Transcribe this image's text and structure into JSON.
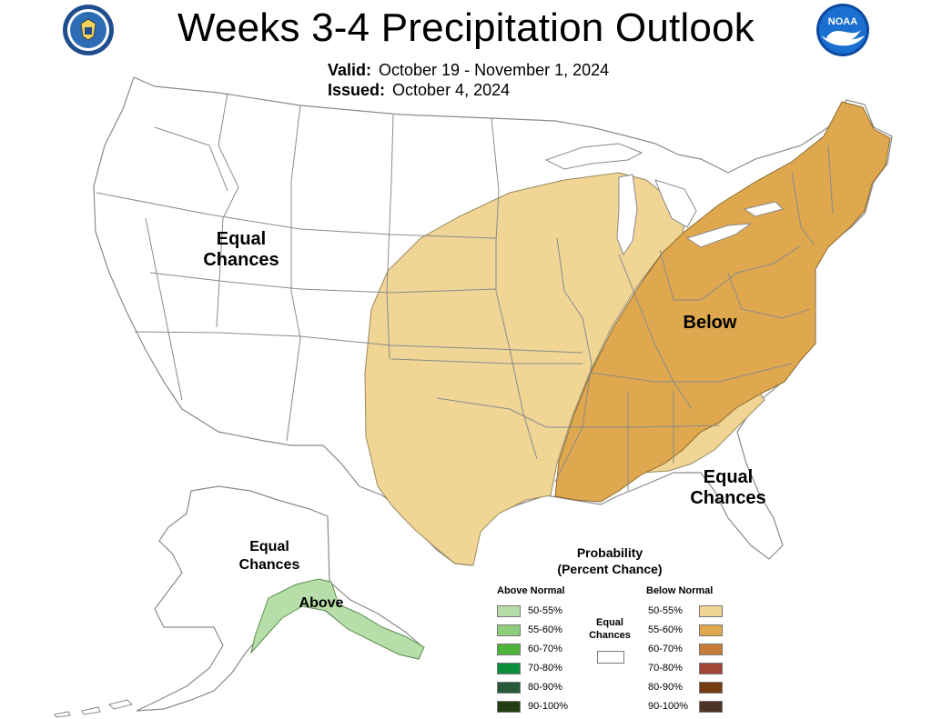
{
  "title": "Weeks 3-4 Precipitation Outlook",
  "valid_label": "Valid:",
  "valid_value": "October 19 - November 1, 2024",
  "issued_label": "Issued:",
  "issued_value": "October 4, 2024",
  "logos": {
    "left": "doc-seal-icon",
    "right": "noaa-logo-icon",
    "right_text": "NOAA"
  },
  "region_labels": {
    "west": [
      "Equal",
      "Chances"
    ],
    "east": "Below",
    "southeast": [
      "Equal",
      "Chances"
    ],
    "alaska_ec": [
      "Equal",
      "Chances"
    ],
    "alaska_above": "Above"
  },
  "legend": {
    "title": [
      "Probability",
      "(Percent Chance)"
    ],
    "above_header": "Above Normal",
    "below_header": "Below Normal",
    "equal_chances": [
      "Equal",
      "Chances"
    ],
    "above": [
      {
        "label": "50-55%",
        "color": "#b7dea8"
      },
      {
        "label": "55-60%",
        "color": "#8fcf7c"
      },
      {
        "label": "60-70%",
        "color": "#4db33b"
      },
      {
        "label": "70-80%",
        "color": "#0c8f3a"
      },
      {
        "label": "80-90%",
        "color": "#275a3a"
      },
      {
        "label": "90-100%",
        "color": "#223f14"
      }
    ],
    "below": [
      {
        "label": "50-55%",
        "color": "#f0d595"
      },
      {
        "label": "55-60%",
        "color": "#dfa84e"
      },
      {
        "label": "60-70%",
        "color": "#c67c38"
      },
      {
        "label": "70-80%",
        "color": "#a24536"
      },
      {
        "label": "80-90%",
        "color": "#763b13"
      },
      {
        "label": "90-100%",
        "color": "#4d3227"
      }
    ]
  },
  "colors": {
    "below_50_55": "#f0d595",
    "below_55_60": "#dfa84e",
    "above_50_55": "#b7dea8"
  }
}
